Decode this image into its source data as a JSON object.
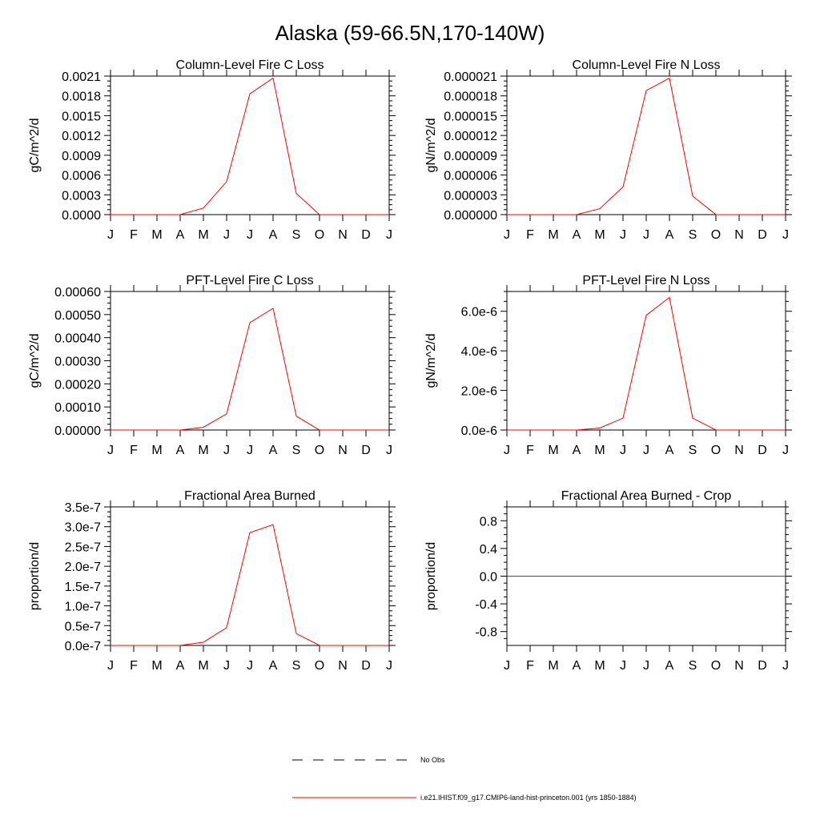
{
  "figure": {
    "title": "Alaska (59-66.5N,170-140W)",
    "legend": [
      {
        "style": "dashed",
        "color": "#000000",
        "label": "No Obs"
      },
      {
        "style": "solid",
        "color": "#ff0000",
        "label": "i.e21.IHIST.f09_g17.CMIP6-land-hist-princeton.001 (yrs 1850-1884)"
      }
    ]
  },
  "chart_data": [
    {
      "type": "line",
      "title": "Column-Level Fire C Loss",
      "ylabel": "gC/m^2/d",
      "xlabel": "",
      "x": [
        "J",
        "F",
        "M",
        "A",
        "M",
        "J",
        "J",
        "A",
        "S",
        "O",
        "N",
        "D",
        "J"
      ],
      "ylim": [
        0,
        0.0021
      ],
      "yticks": [
        0,
        0.0003,
        0.0006,
        0.0009,
        0.0012,
        0.0015,
        0.0018,
        0.0021
      ],
      "yticklabels": [
        "0.0000",
        "0.0003",
        "0.0006",
        "0.0009",
        "0.0012",
        "0.0015",
        "0.0018",
        "0.0021"
      ],
      "minor_per_major": 4,
      "series": [
        {
          "color": "#ff0000",
          "values": [
            0,
            0,
            0,
            0,
            0.0001,
            0.0005,
            0.00183,
            0.00207,
            0.00032,
            0,
            0,
            0,
            0
          ]
        }
      ]
    },
    {
      "type": "line",
      "title": "Column-Level Fire N Loss",
      "ylabel": "gN/m^2/d",
      "xlabel": "",
      "x": [
        "J",
        "F",
        "M",
        "A",
        "M",
        "J",
        "J",
        "A",
        "S",
        "O",
        "N",
        "D",
        "J"
      ],
      "ylim": [
        0,
        2.1e-05
      ],
      "yticks": [
        0,
        3e-06,
        6e-06,
        9e-06,
        1.2e-05,
        1.5e-05,
        1.8e-05,
        2.1e-05
      ],
      "yticklabels": [
        "0.000000",
        "0.000003",
        "0.000006",
        "0.000009",
        "0.000012",
        "0.000015",
        "0.000018",
        "0.000021"
      ],
      "minor_per_major": 4,
      "series": [
        {
          "color": "#ff0000",
          "values": [
            0,
            0,
            0,
            0,
            9e-07,
            4.2e-06,
            1.88e-05,
            2.07e-05,
            2.8e-06,
            0,
            0,
            0,
            0
          ]
        }
      ]
    },
    {
      "type": "line",
      "title": "PFT-Level Fire C Loss",
      "ylabel": "gC/m^2/d",
      "xlabel": "",
      "x": [
        "J",
        "F",
        "M",
        "A",
        "M",
        "J",
        "J",
        "A",
        "S",
        "O",
        "N",
        "D",
        "J"
      ],
      "ylim": [
        0,
        0.0006
      ],
      "yticks": [
        0,
        0.0001,
        0.0002,
        0.0003,
        0.0004,
        0.0005,
        0.0006
      ],
      "yticklabels": [
        "0.00000",
        "0.00010",
        "0.00020",
        "0.00030",
        "0.00040",
        "0.00050",
        "0.00060"
      ],
      "minor_per_major": 4,
      "series": [
        {
          "color": "#ff0000",
          "values": [
            0,
            0,
            0,
            0,
            1.2e-05,
            7e-05,
            0.000465,
            0.000527,
            6e-05,
            0,
            0,
            0,
            0
          ]
        }
      ]
    },
    {
      "type": "line",
      "title": "PFT-Level Fire N Loss",
      "ylabel": "gN/m^2/d",
      "xlabel": "",
      "x": [
        "J",
        "F",
        "M",
        "A",
        "M",
        "J",
        "J",
        "A",
        "S",
        "O",
        "N",
        "D",
        "J"
      ],
      "ylim": [
        0,
        7e-06
      ],
      "yticks": [
        0,
        2e-06,
        4e-06,
        6e-06
      ],
      "yticklabels": [
        "0.0e-6",
        "2.0e-6",
        "4.0e-6",
        "6.0e-6"
      ],
      "minor_per_major": 4,
      "series": [
        {
          "color": "#ff0000",
          "values": [
            0,
            0,
            0,
            0,
            1e-07,
            6e-07,
            5.8e-06,
            6.7e-06,
            6e-07,
            0,
            0,
            0,
            0
          ]
        }
      ]
    },
    {
      "type": "line",
      "title": "Fractional Area Burned",
      "ylabel": "proportion/d",
      "xlabel": "",
      "x": [
        "J",
        "F",
        "M",
        "A",
        "M",
        "J",
        "J",
        "A",
        "S",
        "O",
        "N",
        "D",
        "J"
      ],
      "ylim": [
        0,
        3.5e-07
      ],
      "yticks": [
        0,
        5e-08,
        1e-07,
        1.5e-07,
        2e-07,
        2.5e-07,
        3e-07,
        3.5e-07
      ],
      "yticklabels": [
        "0.0e-7",
        "0.5e-7",
        "1.0e-7",
        "1.5e-7",
        "2.0e-7",
        "2.5e-7",
        "3.0e-7",
        "3.5e-7"
      ],
      "minor_per_major": 4,
      "series": [
        {
          "color": "#ff0000",
          "values": [
            0,
            0,
            0,
            0,
            8e-09,
            4.5e-08,
            2.85e-07,
            3.05e-07,
            3e-08,
            0,
            0,
            0,
            0
          ]
        }
      ]
    },
    {
      "type": "line",
      "title": "Fractional Area Burned - Crop",
      "ylabel": "proportion/d",
      "xlabel": "",
      "x": [
        "J",
        "F",
        "M",
        "A",
        "M",
        "J",
        "J",
        "A",
        "S",
        "O",
        "N",
        "D",
        "J"
      ],
      "ylim": [
        -1,
        1
      ],
      "yticks": [
        -0.8,
        -0.4,
        0,
        0.4,
        0.8
      ],
      "yticklabels": [
        "-0.8",
        "-0.4",
        "0.0",
        "0.4",
        "0.8"
      ],
      "minor_per_major": 4,
      "series": [
        {
          "color": "#ff0000",
          "values": [
            0,
            0,
            0,
            0,
            0,
            0,
            0,
            0,
            0,
            0,
            0,
            0,
            0
          ]
        }
      ]
    }
  ]
}
